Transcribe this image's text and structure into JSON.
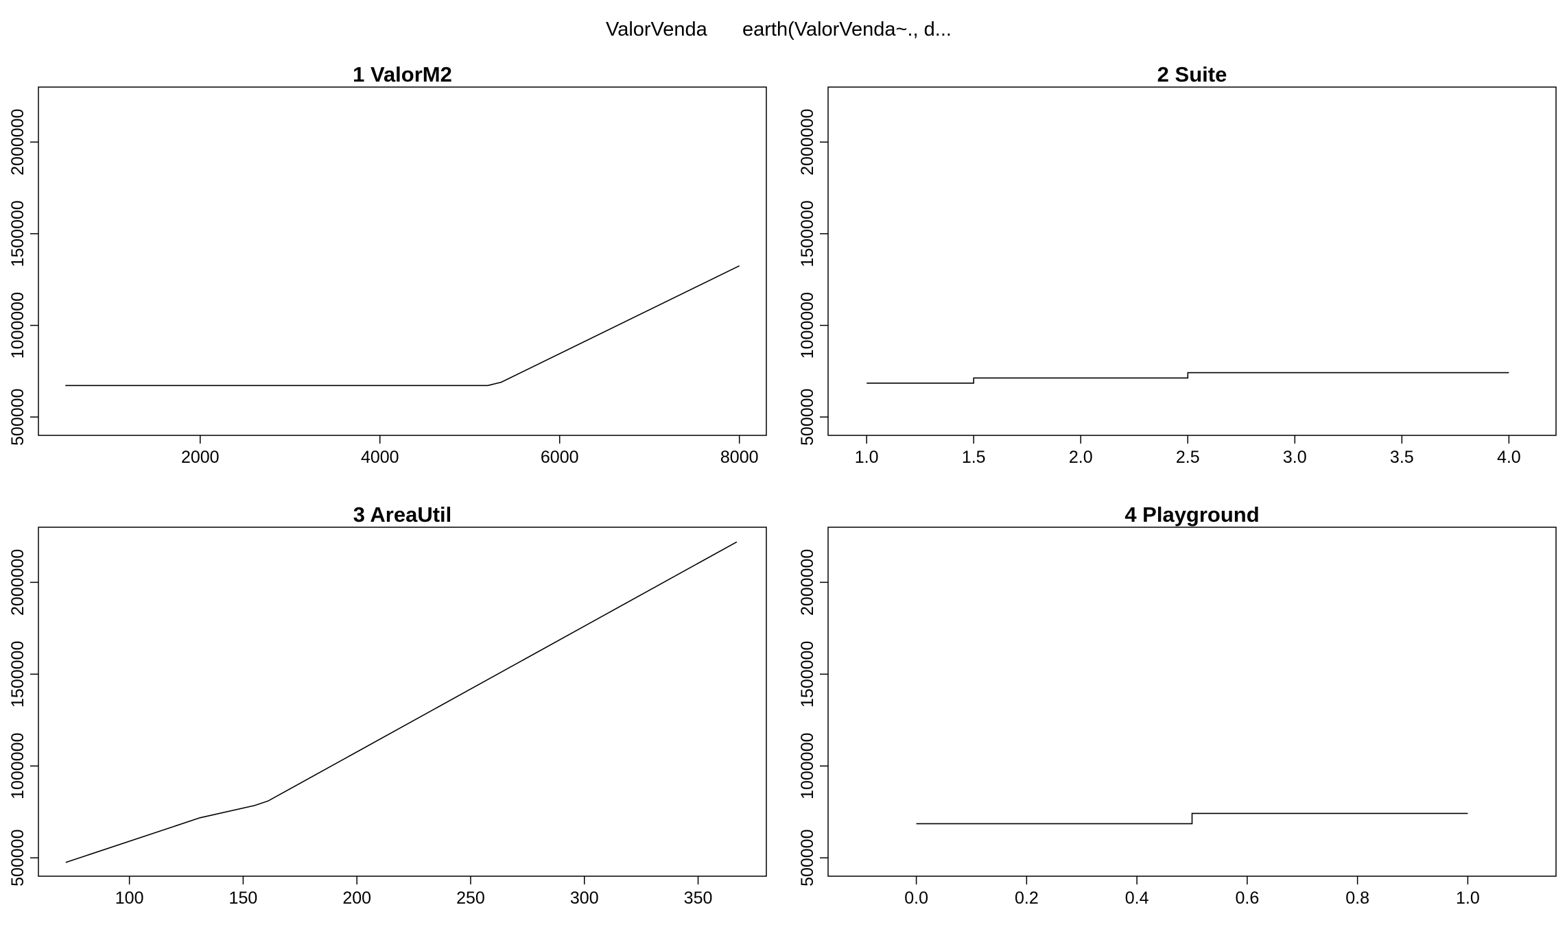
{
  "header": {
    "response": "ValorVenda",
    "model": "earth(ValorVenda~., d..."
  },
  "chart_data": [
    {
      "type": "line",
      "title": "1  ValorM2",
      "xlabel": "",
      "ylabel": "",
      "xlim": [
        200,
        8300
      ],
      "ylim": [
        400000,
        2300000
      ],
      "xticks": [
        2000,
        4000,
        6000,
        8000
      ],
      "xtick_labels": [
        "2000",
        "4000",
        "6000",
        "8000"
      ],
      "yticks": [
        500000,
        1000000,
        1500000,
        2000000
      ],
      "ytick_labels": [
        "500000",
        "1000000",
        "1500000",
        "2000000"
      ],
      "grid": false,
      "series": [
        {
          "x": [
            500,
            5200,
            5350,
            8000
          ],
          "y": [
            672000,
            672000,
            690000,
            1325000
          ]
        }
      ]
    },
    {
      "type": "line",
      "title": "2  Suite",
      "xlabel": "",
      "ylabel": "",
      "xlim": [
        0.82,
        4.22
      ],
      "ylim": [
        400000,
        2300000
      ],
      "xticks": [
        1.0,
        1.5,
        2.0,
        2.5,
        3.0,
        3.5,
        4.0
      ],
      "xtick_labels": [
        "1.0",
        "1.5",
        "2.0",
        "2.5",
        "3.0",
        "3.5",
        "4.0"
      ],
      "yticks": [
        500000,
        1000000,
        1500000,
        2000000
      ],
      "ytick_labels": [
        "500000",
        "1000000",
        "1500000",
        "2000000"
      ],
      "grid": false,
      "series": [
        {
          "x": [
            1.0,
            1.5,
            1.5,
            2.5,
            2.5,
            4.0
          ],
          "y": [
            685000,
            685000,
            713000,
            713000,
            742000,
            742000
          ]
        }
      ]
    },
    {
      "type": "line",
      "title": "3  AreaUtil",
      "xlabel": "",
      "ylabel": "",
      "xlim": [
        60,
        380
      ],
      "ylim": [
        400000,
        2300000
      ],
      "xticks": [
        100,
        150,
        200,
        250,
        300,
        350
      ],
      "xtick_labels": [
        "100",
        "150",
        "200",
        "250",
        "300",
        "350"
      ],
      "yticks": [
        500000,
        1000000,
        1500000,
        2000000
      ],
      "ytick_labels": [
        "500000",
        "1000000",
        "1500000",
        "2000000"
      ],
      "grid": false,
      "series": [
        {
          "x": [
            72,
            131,
            155,
            161,
            367
          ],
          "y": [
            475000,
            718000,
            785000,
            810000,
            2220000
          ]
        }
      ]
    },
    {
      "type": "line",
      "title": "4  Playground",
      "xlabel": "",
      "ylabel": "",
      "xlim": [
        -0.16,
        1.16
      ],
      "ylim": [
        400000,
        2300000
      ],
      "xticks": [
        0.0,
        0.2,
        0.4,
        0.6,
        0.8,
        1.0
      ],
      "xtick_labels": [
        "0.0",
        "0.2",
        "0.4",
        "0.6",
        "0.8",
        "1.0"
      ],
      "yticks": [
        500000,
        1000000,
        1500000,
        2000000
      ],
      "ytick_labels": [
        "500000",
        "1000000",
        "1500000",
        "2000000"
      ],
      "grid": false,
      "series": [
        {
          "x": [
            0.0,
            0.5,
            0.5,
            1.0
          ],
          "y": [
            686000,
            686000,
            742000,
            742000
          ]
        }
      ]
    }
  ]
}
